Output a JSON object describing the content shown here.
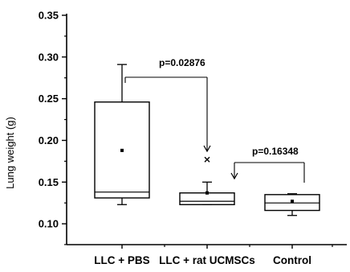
{
  "chart_data": {
    "type": "box",
    "ylabel": "Lung weight (g)",
    "ylim": [
      0.075,
      0.35
    ],
    "yticks": [
      "0.10",
      "0.15",
      "0.20",
      "0.25",
      "0.30",
      "0.35"
    ],
    "categories": [
      "LLC + PBS",
      "LLC + rat UCMSCs",
      "Control"
    ],
    "boxes": [
      {
        "whisker_low": 0.123,
        "q1": 0.131,
        "median": 0.138,
        "q3": 0.246,
        "whisker_high": 0.291,
        "mean": 0.188,
        "outliers": []
      },
      {
        "whisker_low": 0.123,
        "q1": 0.123,
        "median": 0.127,
        "q3": 0.137,
        "whisker_high": 0.15,
        "mean": 0.137,
        "outliers": [
          0.177
        ]
      },
      {
        "whisker_low": 0.11,
        "q1": 0.116,
        "median": 0.125,
        "q3": 0.135,
        "whisker_high": 0.136,
        "mean": 0.127,
        "outliers": []
      }
    ],
    "annotations": [
      {
        "text": "p=0.02876",
        "from": 0,
        "to": 1
      },
      {
        "text": "p=0.16348",
        "from": 1,
        "to": 2
      }
    ]
  }
}
